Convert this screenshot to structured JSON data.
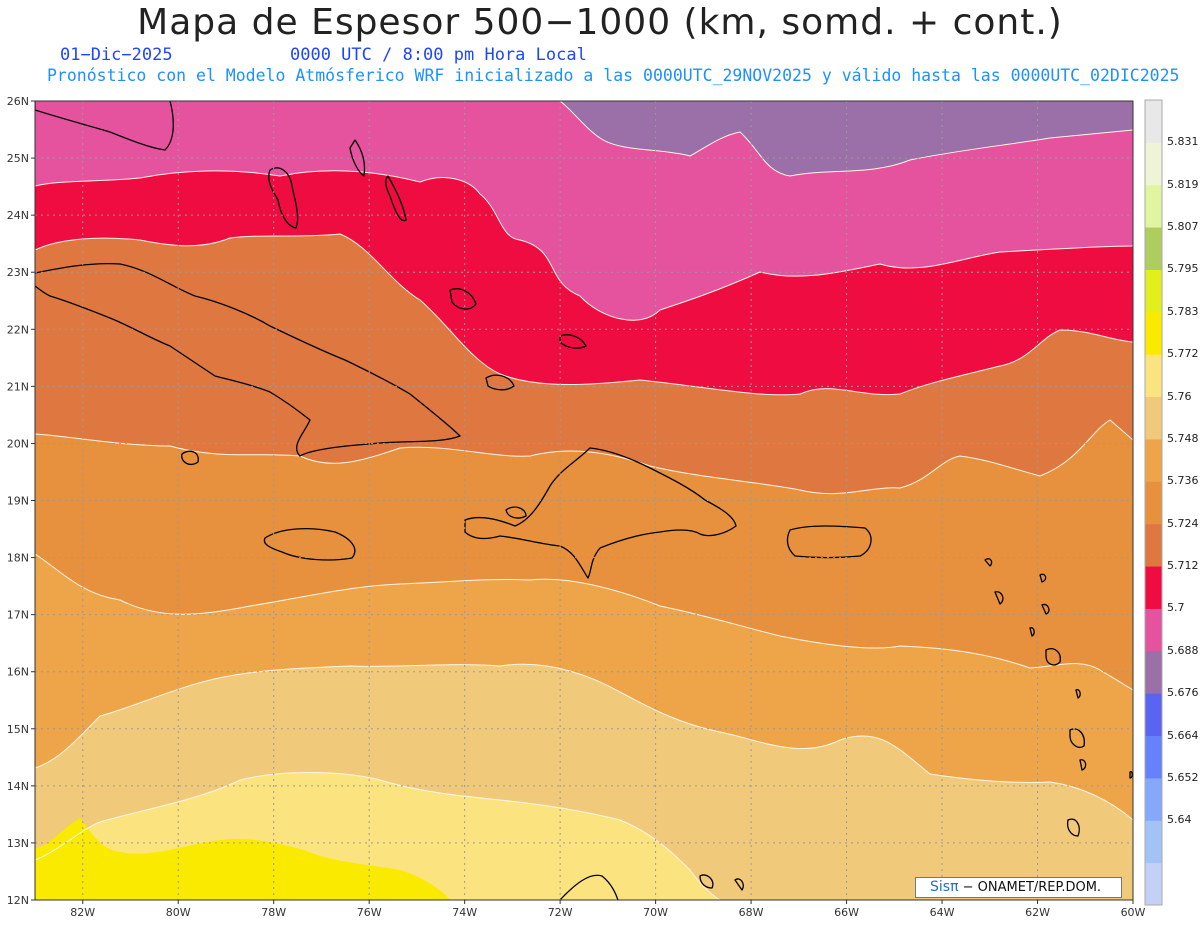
{
  "title": "Mapa de Espesor 500−1000 (km, somd. + cont.)",
  "date": "01−Dic−2025",
  "time_label": "0000 UTC / 8:00 pm Hora Local",
  "forecast_note": "Pronóstico con el Modelo Atmósferico WRF inicializado a las 0000UTC_29NOV2025 y válido hasta las  0000UTC_02DIC2025",
  "credit": {
    "logo": "Sisπ",
    "text": "− ONAMET/REP.DOM."
  },
  "map": {
    "lat_range": [
      12,
      26
    ],
    "lon_range": [
      -83,
      -60
    ],
    "lat_labels": [
      "12N",
      "13N",
      "14N",
      "15N",
      "16N",
      "17N",
      "18N",
      "19N",
      "20N",
      "21N",
      "22N",
      "23N",
      "24N",
      "25N",
      "26N"
    ],
    "lon_labels": [
      "82W",
      "80W",
      "78W",
      "76W",
      "74W",
      "72W",
      "70W",
      "68W",
      "66W",
      "64W",
      "62W",
      "60W"
    ]
  },
  "colorbar": {
    "colors": [
      "#c5d0f7",
      "#a3c2f5",
      "#86a8fb",
      "#6780fb",
      "#5a63f2",
      "#9b6fa8",
      "#e5539e",
      "#ee0c41",
      "#df7840",
      "#e7913e",
      "#eea448",
      "#f1c97b",
      "#fbe47f",
      "#faea00",
      "#e2ef1c",
      "#aecd5f",
      "#e1f5a1",
      "#f0f4d6",
      "#e8e8e8"
    ],
    "labels": [
      "5.64",
      "5.652",
      "5.664",
      "5.676",
      "5.688",
      "5.7",
      "5.712",
      "5.724",
      "5.736",
      "5.748",
      "5.76",
      "5.772",
      "5.783",
      "5.795",
      "5.807",
      "5.819",
      "5.831"
    ]
  },
  "band_colors": {
    "yellow": "#faea00",
    "light_yellow": "#fbe47f",
    "tan": "#f1c97b",
    "light_orange": "#eea448",
    "orange": "#e7913e",
    "dark_orange": "#df7840",
    "red": "#ee0c41",
    "pink": "#e5539e",
    "purple": "#9b6fa8"
  }
}
